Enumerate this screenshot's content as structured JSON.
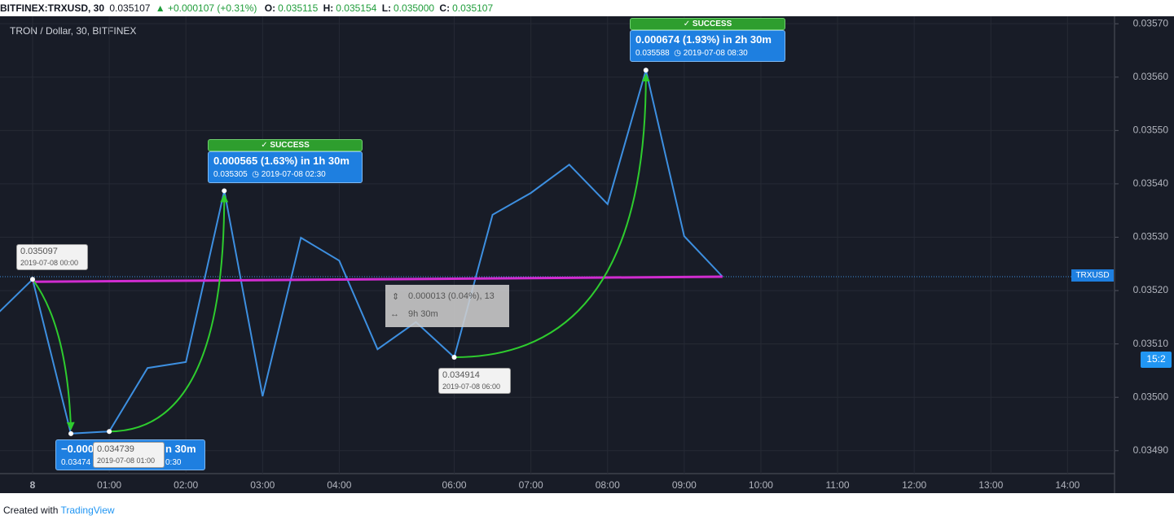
{
  "header": {
    "symbol": "BITFINEX:TRXUSD, 30",
    "price": "0.035107",
    "change": "+0.000107 (+0.31%)",
    "ohlc": [
      {
        "label": "O:",
        "value": "0.035115"
      },
      {
        "label": "H:",
        "value": "0.035154"
      },
      {
        "label": "L:",
        "value": "0.035000"
      },
      {
        "label": "C:",
        "value": "0.035107"
      }
    ]
  },
  "chart_data": {
    "type": "line",
    "title": "TRON / Dollar, 30, BITFINEX",
    "categories": [
      null,
      "8",
      null,
      "01:00",
      null,
      "02:00",
      null,
      "03:00",
      null,
      "04:00",
      null,
      null,
      "06:00",
      null,
      "07:00",
      null,
      "08:00",
      null,
      "09:00",
      null,
      "10:00",
      null,
      "11:00",
      null,
      "12:00",
      null,
      "13:00",
      null,
      "14:00"
    ],
    "series": [
      {
        "name": "TRXUSD",
        "color": "#3d8fe0",
        "values": [
          0.035151,
          0.035221,
          0.034932,
          0.034936,
          0.035055,
          0.035066,
          0.035387,
          0.035002,
          0.035299,
          0.035256,
          0.03509,
          0.035141,
          0.035075,
          0.035342,
          0.035383,
          0.035436,
          0.035362,
          0.035613,
          0.035302,
          0.035226,
          null,
          null,
          null,
          null,
          null,
          null,
          null,
          null,
          null
        ]
      }
    ],
    "ylim": [
      0.034857,
      0.035714
    ],
    "yticks": [
      {
        "value": 0.0349,
        "label": "0.03490"
      },
      {
        "value": 0.035,
        "label": "0.03500"
      },
      {
        "value": 0.0351,
        "label": "0.03510"
      },
      {
        "value": 0.0352,
        "label": "0.03520"
      },
      {
        "value": 0.0353,
        "label": "0.03530"
      },
      {
        "value": 0.0354,
        "label": "0.03540"
      },
      {
        "value": 0.0355,
        "label": "0.03550"
      },
      {
        "value": 0.0356,
        "label": "0.03560"
      },
      {
        "value": 0.0357,
        "label": "0.03570"
      }
    ],
    "grid": true
  },
  "countdown": "15:2",
  "annotations": {
    "tooltips": [
      {
        "price": "0.035097",
        "date": "2019-07-08 00:00"
      },
      {
        "price": "0.034739",
        "date": "2019-07-08 01:00"
      },
      {
        "price": "0.034914",
        "date": "2019-07-08 06:00"
      }
    ],
    "loss": {
      "change_start": "−0.000",
      "change_end": "n 30m",
      "price_start": "0.03474",
      "price_end": "0:30"
    },
    "gains": [
      {
        "status": "SUCCESS",
        "change": "0.000565 (1.63%) in 1h 30m",
        "price": "0.035305",
        "date": "2019-07-08  02:30"
      },
      {
        "status": "SUCCESS",
        "change": "0.000674 (1.93%) in 2h 30m",
        "price": "0.035588",
        "date": "2019-07-08  08:30"
      }
    ],
    "measure": {
      "range": "0.000013 (0.04%), 13",
      "duration": "9h 30m"
    }
  },
  "footer": {
    "text": "Created with",
    "brand": "TradingView"
  }
}
